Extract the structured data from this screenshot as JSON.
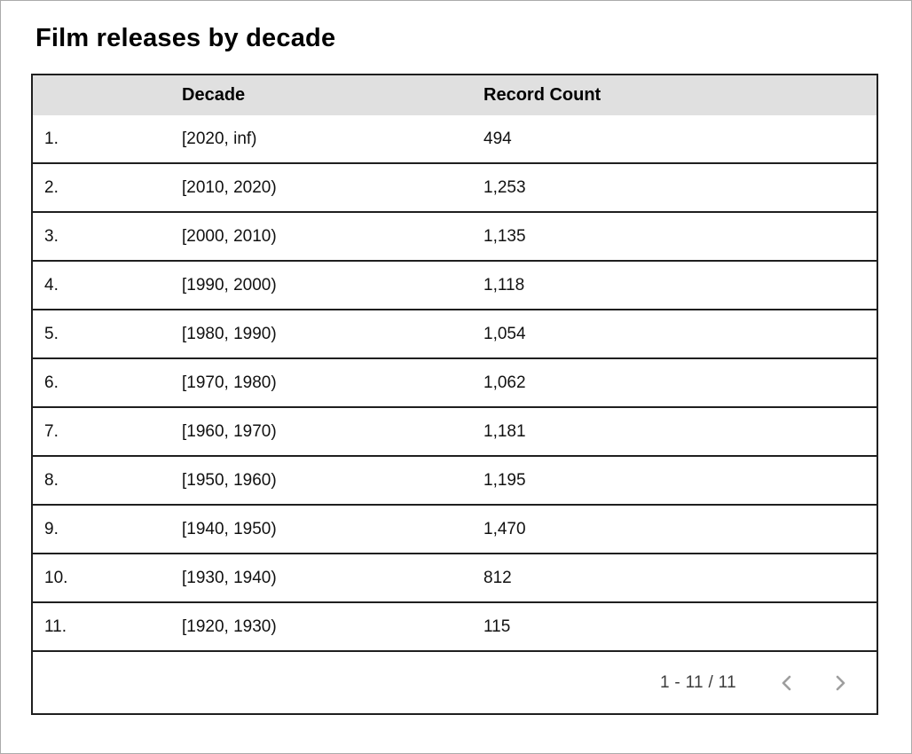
{
  "title": "Film releases by decade",
  "table": {
    "columns": {
      "index": "",
      "decade": "Decade",
      "record_count": "Record Count"
    },
    "rows": [
      {
        "index": "1.",
        "decade": "[2020, inf)",
        "count": "494"
      },
      {
        "index": "2.",
        "decade": "[2010, 2020)",
        "count": "1,253"
      },
      {
        "index": "3.",
        "decade": "[2000, 2010)",
        "count": "1,135"
      },
      {
        "index": "4.",
        "decade": "[1990, 2000)",
        "count": "1,118"
      },
      {
        "index": "5.",
        "decade": "[1980, 1990)",
        "count": "1,054"
      },
      {
        "index": "6.",
        "decade": "[1970, 1980)",
        "count": "1,062"
      },
      {
        "index": "7.",
        "decade": "[1960, 1970)",
        "count": "1,181"
      },
      {
        "index": "8.",
        "decade": "[1950, 1960)",
        "count": "1,195"
      },
      {
        "index": "9.",
        "decade": "[1940, 1950)",
        "count": "1,470"
      },
      {
        "index": "10.",
        "decade": "[1930, 1940)",
        "count": "812"
      },
      {
        "index": "11.",
        "decade": "[1920, 1930)",
        "count": "115"
      }
    ]
  },
  "pagination": {
    "label": "1 - 11 / 11",
    "prev_icon": "chevron-left",
    "next_icon": "chevron-right"
  },
  "colors": {
    "header_bg": "#e0e0e0",
    "table_border": "#1f1f1f",
    "chevron": "#9e9e9e",
    "text": "#111111"
  },
  "chart_data": {
    "type": "table",
    "title": "Film releases by decade",
    "columns": [
      "Decade",
      "Record Count"
    ],
    "rows": [
      [
        "[2020, inf)",
        494
      ],
      [
        "[2010, 2020)",
        1253
      ],
      [
        "[2000, 2010)",
        1135
      ],
      [
        "[1990, 2000)",
        1118
      ],
      [
        "[1980, 1990)",
        1054
      ],
      [
        "[1970, 1980)",
        1062
      ],
      [
        "[1960, 1970)",
        1181
      ],
      [
        "[1950, 1960)",
        1195
      ],
      [
        "[1940, 1950)",
        1470
      ],
      [
        "[1930, 1940)",
        812
      ],
      [
        "[1920, 1930)",
        115
      ]
    ],
    "pagination": "1 - 11 / 11"
  }
}
